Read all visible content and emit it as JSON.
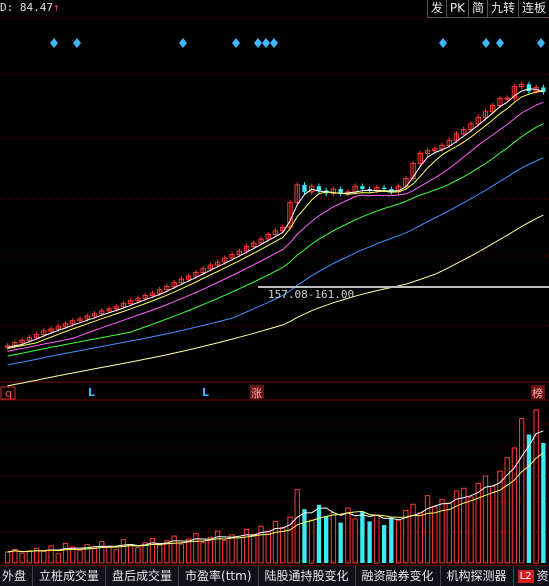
{
  "header": {
    "indicator_value": "D: 84.47",
    "indicator_arrow": "↑",
    "buttons": [
      "发",
      "PK",
      "简",
      "九转",
      "连板"
    ]
  },
  "markers": {
    "left_badge": "q",
    "low_labels": [
      "L",
      "L"
    ],
    "event_labels": [
      "涨",
      "榜"
    ]
  },
  "annotation": {
    "price_range": "157.08-161.00"
  },
  "chart_data": {
    "type": "candlestick",
    "price_candles": {
      "open": [
        11.0,
        11.2,
        11.6,
        11.9,
        12.3,
        12.7,
        13.2,
        13.5,
        13.9,
        14.3,
        14.8,
        15.1,
        15.6,
        16.0,
        16.5,
        16.9,
        17.3,
        17.9,
        18.5,
        19.0,
        19.6,
        20.1,
        20.9,
        21.7,
        22.6,
        23.5,
        24.3,
        25.3,
        26.4,
        27.5,
        28.4,
        29.7,
        30.9,
        32.1,
        33.8,
        35.1,
        36.7,
        38.6,
        40.2,
        41.8,
        55.0,
        67.0,
        62.0,
        66.0,
        63.0,
        61.0,
        64.0,
        61.0,
        62.0,
        66.0,
        64.0,
        63.0,
        65.0,
        64.0,
        62.0,
        66.0,
        72.0,
        85.0,
        95.0,
        98.0,
        100.0,
        104.0,
        110.0,
        118.0,
        124.0,
        132.0,
        142.0,
        151.0,
        162.0,
        175.0,
        176.0,
        200.0,
        205.0,
        190.0,
        198.0
      ],
      "close": [
        11.2,
        11.6,
        11.9,
        12.3,
        12.7,
        13.2,
        13.5,
        13.9,
        14.3,
        14.8,
        15.1,
        15.6,
        16.0,
        16.5,
        16.9,
        17.3,
        17.9,
        18.5,
        19.0,
        19.6,
        20.1,
        20.9,
        21.7,
        22.6,
        23.5,
        24.3,
        25.3,
        26.4,
        27.5,
        28.4,
        29.7,
        30.9,
        32.1,
        33.8,
        35.1,
        36.7,
        38.6,
        40.2,
        41.8,
        55.0,
        67.0,
        62.0,
        66.0,
        63.0,
        61.0,
        64.0,
        61.0,
        62.0,
        66.0,
        64.0,
        63.0,
        65.0,
        64.0,
        62.0,
        66.0,
        72.0,
        85.0,
        95.0,
        98.0,
        100.0,
        104.0,
        110.0,
        118.0,
        124.0,
        132.0,
        142.0,
        151.0,
        162.0,
        175.0,
        176.0,
        200.0,
        205.0,
        190.0,
        198.0,
        188.0
      ]
    },
    "volume": [
      18,
      22,
      16,
      20,
      24,
      19,
      28,
      15,
      32,
      26,
      21,
      30,
      24,
      35,
      27,
      22,
      38,
      30,
      25,
      33,
      40,
      29,
      36,
      44,
      31,
      39,
      48,
      34,
      42,
      52,
      37,
      46,
      41,
      55,
      47,
      60,
      52,
      68,
      58,
      75,
      120,
      88,
      70,
      95,
      76,
      82,
      66,
      90,
      72,
      84,
      68,
      78,
      62,
      74,
      70,
      86,
      96,
      82,
      110,
      92,
      104,
      98,
      118,
      122,
      108,
      130,
      142,
      126,
      150,
      172,
      188,
      236,
      210,
      250,
      196
    ],
    "ma_lines": [
      "MA5",
      "MA10",
      "MA20",
      "MA60",
      "MA120",
      "MA250"
    ]
  },
  "footer": {
    "tabs": [
      "外盘",
      "立桩成交量",
      "盘后成交量",
      "市盈率(ttm)",
      "陆股通持股变化",
      "融资融券变化",
      "机构探测器"
    ],
    "l2_badge": "L2",
    "last_tab": "资"
  },
  "colors": {
    "up": "#ff3838",
    "down": "#40e8f0",
    "ma5": "#ffffff",
    "ma10": "#ffff60",
    "ma20": "#ff60ff",
    "ma60": "#40ff40",
    "ma120": "#4090ff",
    "ma250": "#ffffa0",
    "grid": "#7a0000",
    "diamond": "#40b8ff",
    "annotation": "#cfcfcf"
  }
}
